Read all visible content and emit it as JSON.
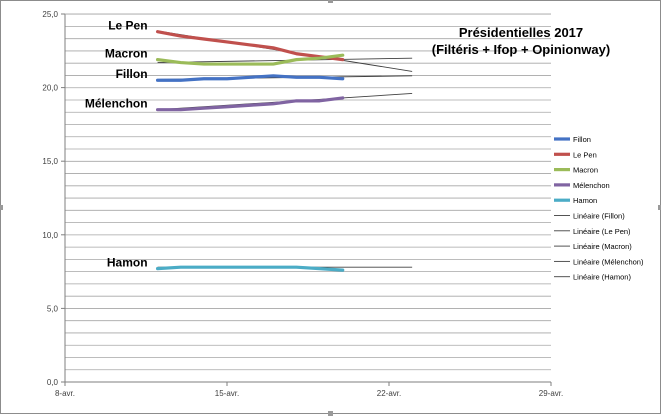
{
  "chart_data": {
    "type": "line",
    "title_line1": "Présidentielles 2017",
    "title_line2": "(Filtéris + Ifop + Opinionway)",
    "x_tick_labels": [
      "8-avr.",
      "15-avr.",
      "22-avr.",
      "29-avr."
    ],
    "x_range": [
      "2017-04-08",
      "2017-04-29"
    ],
    "y_tick_labels": [
      "0,0",
      "5,0",
      "10,0",
      "15,0",
      "20,0",
      "25,0"
    ],
    "ylim": [
      0,
      25
    ],
    "y_step": 0.833,
    "grid": true,
    "legend_position": "right",
    "series": [
      {
        "name": "Fillon",
        "color": "#4472c4",
        "x": [
          "2017-04-12",
          "2017-04-13",
          "2017-04-14",
          "2017-04-15",
          "2017-04-16",
          "2017-04-17",
          "2017-04-18",
          "2017-04-19",
          "2017-04-20"
        ],
        "values": [
          20.5,
          20.5,
          20.6,
          20.6,
          20.7,
          20.8,
          20.7,
          20.7,
          20.6
        ]
      },
      {
        "name": "Le Pen",
        "color": "#c0504d",
        "x": [
          "2017-04-12",
          "2017-04-13",
          "2017-04-14",
          "2017-04-15",
          "2017-04-16",
          "2017-04-17",
          "2017-04-18",
          "2017-04-19",
          "2017-04-20"
        ],
        "values": [
          23.8,
          23.5,
          23.3,
          23.1,
          22.9,
          22.7,
          22.3,
          22.1,
          21.9
        ]
      },
      {
        "name": "Macron",
        "color": "#9bbb59",
        "x": [
          "2017-04-12",
          "2017-04-13",
          "2017-04-14",
          "2017-04-15",
          "2017-04-16",
          "2017-04-17",
          "2017-04-18",
          "2017-04-19",
          "2017-04-20"
        ],
        "values": [
          21.9,
          21.7,
          21.6,
          21.6,
          21.6,
          21.6,
          21.9,
          22.0,
          22.2
        ]
      },
      {
        "name": "Mélenchon",
        "color": "#8064a2",
        "x": [
          "2017-04-12",
          "2017-04-13",
          "2017-04-14",
          "2017-04-15",
          "2017-04-16",
          "2017-04-17",
          "2017-04-18",
          "2017-04-19",
          "2017-04-20"
        ],
        "values": [
          18.5,
          18.5,
          18.6,
          18.7,
          18.8,
          18.9,
          19.1,
          19.1,
          19.3
        ]
      },
      {
        "name": "Hamon",
        "color": "#4bacc6",
        "x": [
          "2017-04-12",
          "2017-04-13",
          "2017-04-14",
          "2017-04-15",
          "2017-04-16",
          "2017-04-17",
          "2017-04-18",
          "2017-04-19",
          "2017-04-20"
        ],
        "values": [
          7.7,
          7.8,
          7.8,
          7.8,
          7.8,
          7.8,
          7.8,
          7.7,
          7.6
        ]
      }
    ],
    "trendlines": [
      {
        "name": "Linéaire (Fillon)",
        "color": "#404040",
        "x": [
          "2017-04-12",
          "2017-04-23"
        ],
        "values": [
          20.55,
          20.8
        ]
      },
      {
        "name": "Linéaire (Le Pen)",
        "color": "#404040",
        "x": [
          "2017-04-12",
          "2017-04-23"
        ],
        "values": [
          23.85,
          21.1
        ]
      },
      {
        "name": "Linéaire (Macron)",
        "color": "#404040",
        "x": [
          "2017-04-12",
          "2017-04-23"
        ],
        "values": [
          21.7,
          22.0
        ]
      },
      {
        "name": "Linéaire (Mélenchon)",
        "color": "#404040",
        "x": [
          "2017-04-12",
          "2017-04-23"
        ],
        "values": [
          18.5,
          19.6
        ]
      },
      {
        "name": "Linéaire (Hamon)",
        "color": "#404040",
        "x": [
          "2017-04-12",
          "2017-04-23"
        ],
        "values": [
          7.8,
          7.8
        ]
      }
    ],
    "annotations": [
      {
        "text": "Le Pen",
        "series": "Le Pen"
      },
      {
        "text": "Macron",
        "series": "Macron"
      },
      {
        "text": "Fillon",
        "series": "Fillon"
      },
      {
        "text": "Mélenchon",
        "series": "Mélenchon"
      },
      {
        "text": "Hamon",
        "series": "Hamon"
      }
    ],
    "legend": [
      "Fillon",
      "Le Pen",
      "Macron",
      "Mélenchon",
      "Hamon",
      "Linéaire (Fillon)",
      "Linéaire (Le Pen)",
      "Linéaire (Macron)",
      "Linéaire (Mélenchon)",
      "Linéaire (Hamon)"
    ]
  }
}
